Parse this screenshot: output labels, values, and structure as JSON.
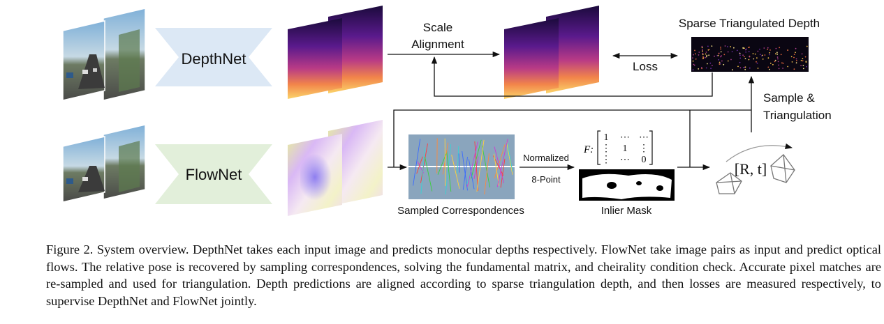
{
  "diagram": {
    "depthnet_label": "DepthNet",
    "flownet_label": "FlowNet",
    "scale_alignment_line1": "Scale",
    "scale_alignment_line2": "Alignment",
    "loss_label": "Loss",
    "sparse_depth_label": "Sparse Triangulated Depth",
    "sample_line1": "Sample &",
    "sample_line2": "Triangulation",
    "normalized_label": "Normalized",
    "eight_point_label": "8-Point",
    "correspondences_label": "Sampled Correspondences",
    "inlier_mask_label": "Inlier Mask",
    "pose_label": "[R, t]",
    "matrix": {
      "symbol": "F:",
      "row1": [
        "1",
        "⋯",
        "⋯"
      ],
      "row2": [
        "⋮",
        "1",
        "⋮"
      ],
      "row3": [
        "⋮",
        "⋯",
        "0"
      ]
    }
  },
  "colors": {
    "depthnet_fill": "#dce8f5",
    "flownet_fill": "#e2efda",
    "arrow": "#111111"
  },
  "caption": {
    "text": "Figure 2. System overview. DepthNet takes each input image and predicts monocular depths respectively. FlowNet take image pairs as input and predict optical flows. The relative pose is recovered by sampling correspondences, solving the fundamental matrix, and cheirality condition check. Accurate pixel matches are re-sampled and used for triangulation. Depth predictions are aligned according to sparse triangulation depth, and then losses are measured respectively, to supervise DepthNet and FlowNet jointly."
  }
}
